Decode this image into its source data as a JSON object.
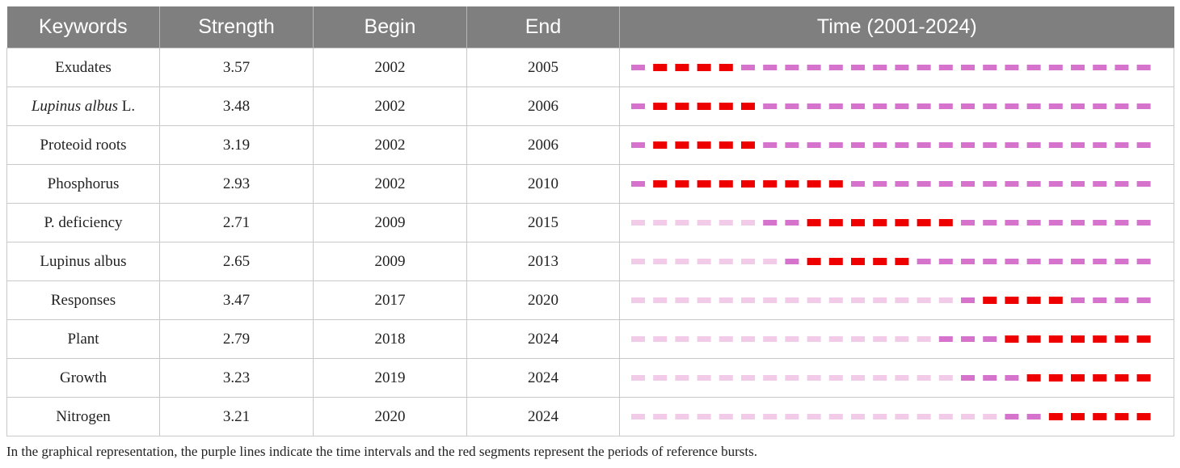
{
  "chart_data": {
    "type": "table",
    "columns": [
      "Keywords",
      "Strength",
      "Begin",
      "End",
      "Time (2001-2024)"
    ],
    "time_range": [
      2001,
      2024
    ],
    "rows": [
      {
        "keyword_italic": "",
        "keyword": "Exudates",
        "strength": "3.57",
        "begin": "2002",
        "end": "2005"
      },
      {
        "keyword_italic": "Lupinus albus",
        "keyword": " L.",
        "strength": "3.48",
        "begin": "2002",
        "end": "2006"
      },
      {
        "keyword_italic": "",
        "keyword": "Proteoid roots",
        "strength": "3.19",
        "begin": "2002",
        "end": "2006"
      },
      {
        "keyword_italic": "",
        "keyword": "Phosphorus",
        "strength": "2.93",
        "begin": "2002",
        "end": "2010"
      },
      {
        "keyword_italic": "",
        "keyword": "P. deficiency",
        "strength": "2.71",
        "begin": "2009",
        "end": "2015"
      },
      {
        "keyword_italic": "",
        "keyword": "Lupinus albus",
        "strength": "2.65",
        "begin": "2009",
        "end": "2013"
      },
      {
        "keyword_italic": "",
        "keyword": "Responses",
        "strength": "3.47",
        "begin": "2017",
        "end": "2020"
      },
      {
        "keyword_italic": "",
        "keyword": "Plant",
        "strength": "2.79",
        "begin": "2018",
        "end": "2024"
      },
      {
        "keyword_italic": "",
        "keyword": "Growth",
        "strength": "3.23",
        "begin": "2019",
        "end": "2024"
      },
      {
        "keyword_italic": "",
        "keyword": "Nitrogen",
        "strength": "3.21",
        "begin": "2020",
        "end": "2024"
      }
    ],
    "first_appearance": [
      2001,
      2001,
      2001,
      2001,
      2007,
      2008,
      2016,
      2015,
      2016,
      2018
    ],
    "colors": {
      "before": "#f2cbe8",
      "interval": "#d673cc",
      "burst": "#ee0000"
    }
  },
  "caption": "In the graphical representation, the purple lines indicate the time intervals and the red segments represent the periods of reference bursts."
}
